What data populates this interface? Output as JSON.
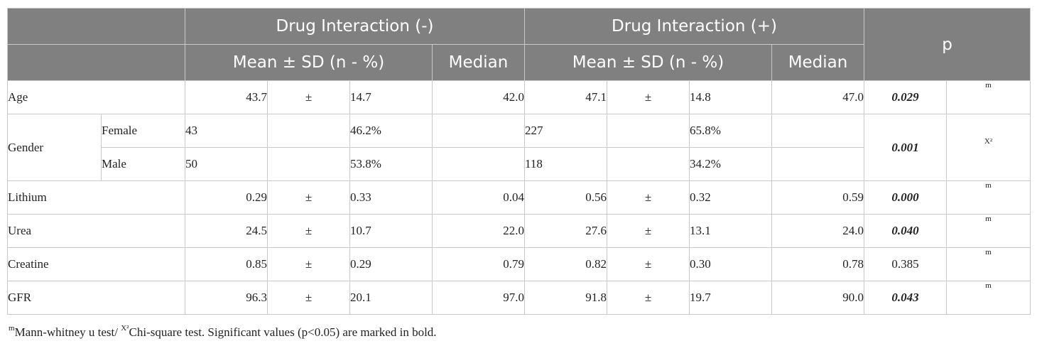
{
  "header": {
    "group_neg": "Drug Interaction (-)",
    "group_pos": "Drug Interaction (+)",
    "p": "p",
    "mean_sd": "Mean ± SD (n - %)",
    "median": "Median"
  },
  "rows": {
    "age": {
      "label": "Age",
      "m1": "43.7",
      "pm": "±",
      "sd1": "14.7",
      "med1": "42.0",
      "m2": "47.1",
      "sd2": "14.8",
      "med2": "47.0",
      "p": "0.029",
      "test": "m"
    },
    "gender": {
      "label": "Gender",
      "female": {
        "label": "Female",
        "n1": "43",
        "pct1": "46.2%",
        "n2": "227",
        "pct2": "65.8%"
      },
      "male": {
        "label": "Male",
        "n1": "50",
        "pct1": "53.8%",
        "n2": "118",
        "pct2": "34.2%"
      },
      "p": "0.001",
      "test": "X²"
    },
    "lithium": {
      "label": "Lithium",
      "m1": "0.29",
      "pm": "±",
      "sd1": "0.33",
      "med1": "0.04",
      "m2": "0.56",
      "sd2": "0.32",
      "med2": "0.59",
      "p": "0.000",
      "test": "m"
    },
    "urea": {
      "label": "Urea",
      "m1": "24.5",
      "pm": "±",
      "sd1": "10.7",
      "med1": "22.0",
      "m2": "27.6",
      "sd2": "13.1",
      "med2": "24.0",
      "p": "0.040",
      "test": "m"
    },
    "creatine": {
      "label": "Creatine",
      "m1": "0.85",
      "pm": "±",
      "sd1": "0.29",
      "med1": "0.79",
      "m2": "0.82",
      "sd2": "0.30",
      "med2": "0.78",
      "p": "0.385",
      "test": "m"
    },
    "gfr": {
      "label": "GFR",
      "m1": "96.3",
      "pm": "±",
      "sd1": "20.1",
      "med1": "97.0",
      "m2": "91.8",
      "sd2": "19.7",
      "med2": "90.0",
      "p": "0.043",
      "test": "m"
    }
  },
  "footnote": {
    "m_sup": "m",
    "m_text": "Mann-whitney u test/ ",
    "x_sup": "X²",
    "x_text": "Chi-square test. Significant values (p<0.05) are marked in bold."
  }
}
